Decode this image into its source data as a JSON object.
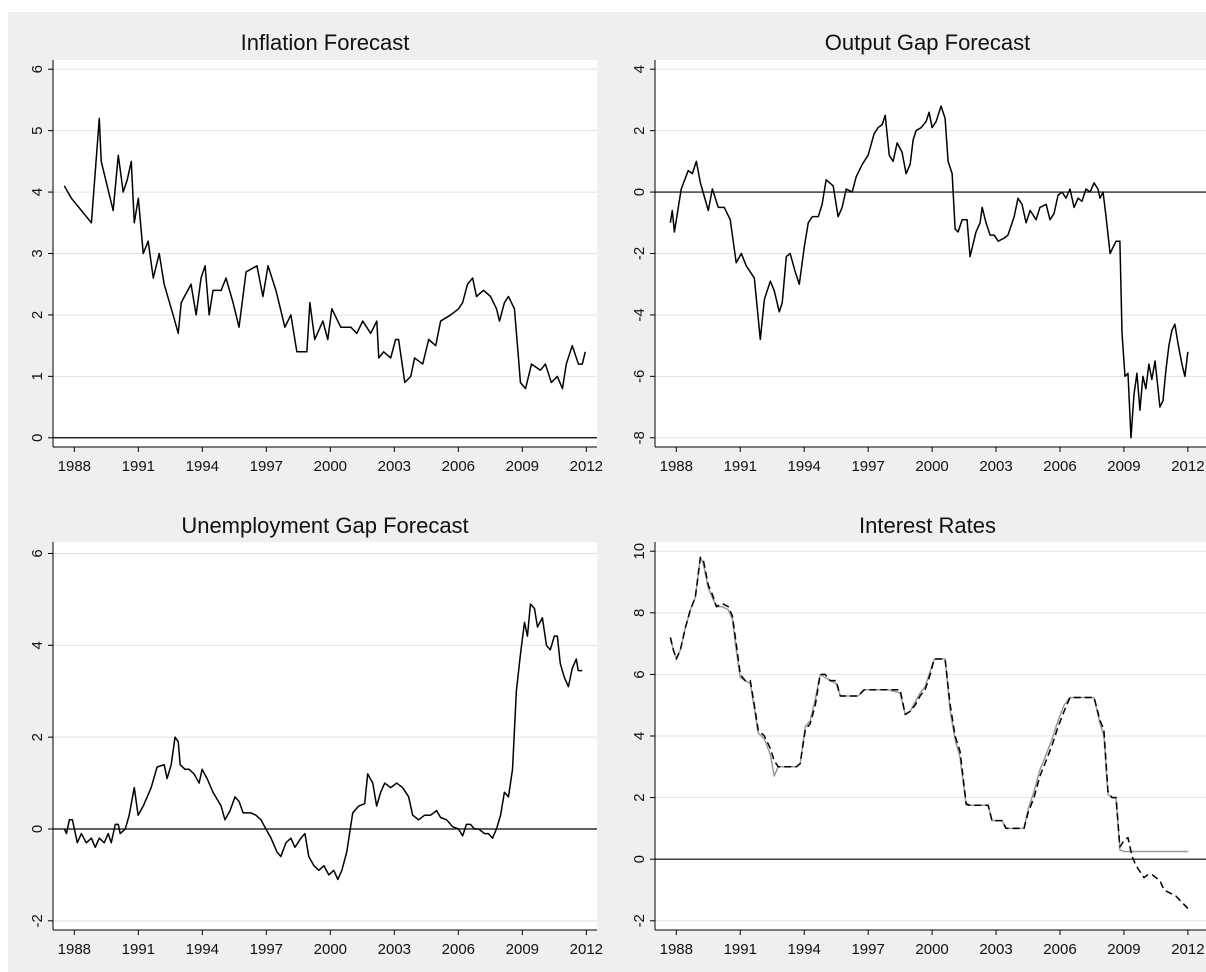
{
  "chart_data": [
    {
      "type": "line",
      "title": "Inflation Forecast",
      "x": [
        1987.53,
        1987.86,
        1988.33,
        1988.8,
        1989.17,
        1989.26,
        1989.82,
        1990.06,
        1990.29,
        1990.48,
        1990.67,
        1990.81,
        1991.0,
        1991.23,
        1991.46,
        1991.7,
        1991.98,
        1992.21,
        1992.63,
        1992.87,
        1993.01,
        1993.47,
        1993.71,
        1993.94,
        1994.13,
        1994.32,
        1994.5,
        1994.88,
        1995.11,
        1995.44,
        1995.72,
        1996.05,
        1996.56,
        1996.84,
        1997.08,
        1997.45,
        1997.87,
        1998.15,
        1998.43,
        1998.9,
        1999.04,
        1999.27,
        1999.65,
        1999.88,
        2000.07,
        2000.49,
        2000.96,
        2001.24,
        2001.52,
        2001.89,
        2002.18,
        2002.27,
        2002.5,
        2002.83,
        2003.06,
        2003.2,
        2003.49,
        2003.77,
        2003.95,
        2004.33,
        2004.61,
        2004.94,
        2005.17,
        2005.64,
        2006.01,
        2006.2,
        2006.43,
        2006.67,
        2006.85,
        2007.18,
        2007.51,
        2007.79,
        2007.93,
        2008.16,
        2008.35,
        2008.63,
        2008.82,
        2008.91,
        2009.15,
        2009.43,
        2009.85,
        2010.08,
        2010.36,
        2010.64,
        2010.88,
        2011.06,
        2011.34,
        2011.63,
        2011.81,
        2011.95
      ],
      "series": [
        {
          "color": "#000000",
          "style": "solid",
          "values": [
            4.1,
            3.9,
            3.7,
            3.5,
            5.2,
            4.5,
            3.7,
            4.6,
            4.0,
            4.2,
            4.5,
            3.5,
            3.9,
            3.0,
            3.2,
            2.6,
            3.0,
            2.5,
            2.0,
            1.7,
            2.2,
            2.5,
            2.0,
            2.6,
            2.8,
            2.0,
            2.4,
            2.4,
            2.6,
            2.2,
            1.8,
            2.7,
            2.8,
            2.3,
            2.8,
            2.4,
            1.8,
            2.0,
            1.4,
            1.4,
            2.2,
            1.6,
            1.9,
            1.6,
            2.1,
            1.8,
            1.8,
            1.7,
            1.9,
            1.7,
            1.9,
            1.3,
            1.4,
            1.3,
            1.6,
            1.6,
            0.9,
            1.0,
            1.3,
            1.2,
            1.6,
            1.5,
            1.9,
            2.0,
            2.1,
            2.2,
            2.5,
            2.6,
            2.3,
            2.4,
            2.3,
            2.1,
            1.9,
            2.2,
            2.3,
            2.1,
            1.3,
            0.9,
            0.8,
            1.2,
            1.1,
            1.2,
            0.9,
            1.0,
            0.8,
            1.2,
            1.5,
            1.2,
            1.2,
            1.4
          ]
        }
      ],
      "xlim": [
        1987,
        2012.5
      ],
      "xticks": [
        1988,
        1991,
        1994,
        1997,
        2000,
        2003,
        2006,
        2009,
        2012
      ],
      "ylim": [
        -0.15,
        6.15
      ],
      "yticks": [
        0,
        1,
        2,
        3,
        4,
        5,
        6
      ],
      "grid": true,
      "reference_line": 0
    },
    {
      "type": "line",
      "title": "Output Gap Forecast",
      "x": [
        1987.72,
        1987.81,
        1987.91,
        1988.23,
        1988.56,
        1988.75,
        1988.94,
        1989.13,
        1989.5,
        1989.69,
        1989.97,
        1990.25,
        1990.53,
        1990.81,
        1991.05,
        1991.28,
        1991.66,
        1991.94,
        1992.13,
        1992.41,
        1992.59,
        1992.83,
        1992.97,
        1993.16,
        1993.34,
        1993.58,
        1993.77,
        1994.0,
        1994.19,
        1994.38,
        1994.66,
        1994.84,
        1995.03,
        1995.36,
        1995.59,
        1995.78,
        1995.97,
        1996.25,
        1996.44,
        1996.72,
        1997.0,
        1997.28,
        1997.47,
        1997.66,
        1997.8,
        1997.99,
        1998.17,
        1998.36,
        1998.59,
        1998.78,
        1998.97,
        1999.11,
        1999.25,
        1999.49,
        1999.72,
        1999.86,
        2000.0,
        2000.19,
        2000.42,
        2000.61,
        2000.75,
        2000.94,
        2001.08,
        2001.22,
        2001.41,
        2001.64,
        2001.78,
        2002.06,
        2002.25,
        2002.35,
        2002.53,
        2002.72,
        2002.91,
        2003.1,
        2003.38,
        2003.56,
        2003.85,
        2004.03,
        2004.22,
        2004.41,
        2004.6,
        2004.88,
        2005.06,
        2005.35,
        2005.53,
        2005.72,
        2005.91,
        2006.1,
        2006.28,
        2006.47,
        2006.66,
        2006.85,
        2007.03,
        2007.22,
        2007.41,
        2007.6,
        2007.78,
        2007.88,
        2008.02,
        2008.16,
        2008.35,
        2008.63,
        2008.81,
        2008.91,
        2009.05,
        2009.19,
        2009.33,
        2009.47,
        2009.61,
        2009.75,
        2009.89,
        2010.03,
        2010.17,
        2010.31,
        2010.46,
        2010.69,
        2010.83,
        2010.97,
        2011.11,
        2011.25,
        2011.39,
        2011.53,
        2011.72,
        2011.86,
        2012.0
      ],
      "series": [
        {
          "color": "#000000",
          "style": "solid",
          "values": [
            -1.0,
            -0.6,
            -1.3,
            0.1,
            0.7,
            0.6,
            1.0,
            0.3,
            -0.6,
            0.1,
            -0.5,
            -0.5,
            -0.9,
            -2.3,
            -2.0,
            -2.4,
            -2.8,
            -4.8,
            -3.5,
            -2.9,
            -3.2,
            -3.9,
            -3.6,
            -2.1,
            -2.0,
            -2.6,
            -3.0,
            -1.8,
            -1.0,
            -0.8,
            -0.8,
            -0.4,
            0.4,
            0.2,
            -0.8,
            -0.5,
            0.1,
            0.0,
            0.5,
            0.9,
            1.2,
            1.9,
            2.1,
            2.2,
            2.5,
            1.2,
            1.0,
            1.6,
            1.3,
            0.6,
            0.9,
            1.7,
            2.0,
            2.1,
            2.3,
            2.6,
            2.1,
            2.3,
            2.8,
            2.4,
            1.0,
            0.6,
            -1.2,
            -1.3,
            -0.9,
            -0.9,
            -2.1,
            -1.3,
            -1.0,
            -0.5,
            -1.0,
            -1.4,
            -1.4,
            -1.6,
            -1.5,
            -1.4,
            -0.8,
            -0.2,
            -0.4,
            -1.0,
            -0.6,
            -0.9,
            -0.5,
            -0.4,
            -0.9,
            -0.7,
            -0.1,
            0.0,
            -0.2,
            0.1,
            -0.5,
            -0.2,
            -0.3,
            0.1,
            0.0,
            0.3,
            0.1,
            -0.2,
            0.0,
            -0.8,
            -2.0,
            -1.6,
            -1.6,
            -4.6,
            -6.0,
            -5.9,
            -8.0,
            -6.6,
            -5.9,
            -7.1,
            -6.0,
            -6.4,
            -5.6,
            -6.1,
            -5.5,
            -7.0,
            -6.8,
            -5.8,
            -5.0,
            -4.5,
            -4.3,
            -4.9,
            -5.6,
            -6.0,
            -5.2
          ]
        }
      ],
      "xlim": [
        1987,
        2012.85
      ],
      "xticks": [
        1988,
        1991,
        1994,
        1997,
        2000,
        2003,
        2006,
        2009,
        2012
      ],
      "ylim": [
        -8.3,
        4.3
      ],
      "yticks": [
        -8,
        -6,
        -4,
        -2,
        0,
        2,
        4
      ],
      "grid": true,
      "reference_line": 0
    },
    {
      "type": "line",
      "title": "Unemployment Gap Forecast",
      "x": [
        1987.53,
        1987.63,
        1987.77,
        1987.91,
        1988.14,
        1988.33,
        1988.56,
        1988.8,
        1988.98,
        1989.17,
        1989.4,
        1989.59,
        1989.73,
        1989.92,
        1990.06,
        1990.15,
        1990.39,
        1990.57,
        1990.81,
        1990.99,
        1991.23,
        1991.6,
        1991.88,
        1992.21,
        1992.35,
        1992.54,
        1992.72,
        1992.87,
        1992.96,
        1993.19,
        1993.38,
        1993.61,
        1993.85,
        1993.99,
        1994.22,
        1994.5,
        1994.88,
        1995.06,
        1995.3,
        1995.53,
        1995.72,
        1995.91,
        1996.28,
        1996.51,
        1996.75,
        1996.98,
        1997.22,
        1997.5,
        1997.68,
        1997.92,
        1998.15,
        1998.34,
        1998.62,
        1998.81,
        1998.99,
        1999.23,
        1999.46,
        1999.7,
        1999.93,
        2000.16,
        2000.35,
        2000.54,
        2000.77,
        2001.05,
        2001.33,
        2001.61,
        2001.75,
        2001.99,
        2002.17,
        2002.36,
        2002.55,
        2002.83,
        2003.11,
        2003.39,
        2003.67,
        2003.86,
        2004.14,
        2004.42,
        2004.7,
        2004.98,
        2005.17,
        2005.45,
        2005.73,
        2006.01,
        2006.2,
        2006.38,
        2006.57,
        2006.76,
        2006.95,
        2007.23,
        2007.41,
        2007.6,
        2007.79,
        2007.98,
        2008.16,
        2008.35,
        2008.54,
        2008.72,
        2008.91,
        2009.1,
        2009.24,
        2009.38,
        2009.57,
        2009.71,
        2009.94,
        2010.13,
        2010.31,
        2010.5,
        2010.64,
        2010.78,
        2010.97,
        2011.16,
        2011.34,
        2011.53,
        2011.62,
        2011.81
      ],
      "series": [
        {
          "color": "#000000",
          "style": "solid",
          "values": [
            0.0,
            -0.1,
            0.2,
            0.2,
            -0.3,
            -0.1,
            -0.3,
            -0.2,
            -0.4,
            -0.2,
            -0.3,
            -0.1,
            -0.3,
            0.1,
            0.1,
            -0.1,
            0.0,
            0.3,
            0.9,
            0.3,
            0.5,
            0.9,
            1.35,
            1.4,
            1.1,
            1.4,
            2.0,
            1.9,
            1.4,
            1.3,
            1.3,
            1.2,
            1.0,
            1.3,
            1.1,
            0.8,
            0.5,
            0.2,
            0.4,
            0.7,
            0.6,
            0.35,
            0.35,
            0.3,
            0.2,
            0.0,
            -0.2,
            -0.5,
            -0.6,
            -0.3,
            -0.2,
            -0.4,
            -0.2,
            -0.1,
            -0.6,
            -0.8,
            -0.9,
            -0.8,
            -1.0,
            -0.9,
            -1.1,
            -0.9,
            -0.5,
            0.35,
            0.5,
            0.55,
            1.2,
            1.0,
            0.5,
            0.8,
            1.0,
            0.9,
            1.0,
            0.9,
            0.7,
            0.3,
            0.2,
            0.3,
            0.3,
            0.4,
            0.25,
            0.2,
            0.05,
            0.0,
            -0.15,
            0.1,
            0.1,
            0.0,
            0.0,
            -0.1,
            -0.1,
            -0.2,
            0.0,
            0.3,
            0.8,
            0.7,
            1.3,
            3.0,
            3.8,
            4.5,
            4.2,
            4.9,
            4.8,
            4.4,
            4.6,
            4.0,
            3.9,
            4.2,
            4.2,
            3.6,
            3.3,
            3.1,
            3.5,
            3.7,
            3.45,
            3.45
          ]
        }
      ],
      "xlim": [
        1987,
        2012.5
      ],
      "xticks": [
        1988,
        1991,
        1994,
        1997,
        2000,
        2003,
        2006,
        2009,
        2012
      ],
      "ylim": [
        -2.2,
        6.25
      ],
      "yticks": [
        -2,
        0,
        2,
        4,
        6
      ],
      "grid": true,
      "reference_line": 0
    },
    {
      "type": "line",
      "title": "Interest Rates",
      "x": [
        1987.72,
        1987.86,
        1988.0,
        1988.19,
        1988.42,
        1988.66,
        1988.89,
        1989.13,
        1989.27,
        1989.5,
        1989.69,
        1989.88,
        1990.16,
        1990.44,
        1990.63,
        1990.81,
        1991.0,
        1991.23,
        1991.47,
        1991.66,
        1991.84,
        1992.13,
        1992.41,
        1992.59,
        1992.78,
        1993.06,
        1993.34,
        1993.63,
        1993.81,
        1994.05,
        1994.28,
        1994.52,
        1994.75,
        1994.98,
        1995.22,
        1995.5,
        1995.69,
        1995.97,
        1996.25,
        1996.53,
        1996.81,
        1997.38,
        1997.94,
        1998.5,
        1998.74,
        1998.97,
        1999.2,
        1999.44,
        1999.67,
        1999.91,
        2000.1,
        2000.61,
        2000.85,
        2001.08,
        2001.31,
        2001.6,
        2001.78,
        2002.63,
        2002.81,
        2003.28,
        2003.47,
        2004.31,
        2004.5,
        2004.78,
        2005.06,
        2005.35,
        2005.63,
        2005.91,
        2006.19,
        2006.47,
        2007.6,
        2007.88,
        2008.06,
        2008.25,
        2008.44,
        2008.63,
        2008.81,
        2009.0,
        2009.19,
        2009.38,
        2009.56,
        2009.75,
        2009.94,
        2010.13,
        2010.31,
        2010.5,
        2010.69,
        2010.88,
        2011.16,
        2011.44,
        2011.72,
        2012.0
      ],
      "series": [
        {
          "color": "#999999",
          "style": "solid",
          "values": [
            7.2,
            6.8,
            6.5,
            6.8,
            7.5,
            8.1,
            8.5,
            9.8,
            9.6,
            8.8,
            8.5,
            8.2,
            8.2,
            8.1,
            7.8,
            6.8,
            5.9,
            5.8,
            5.7,
            4.9,
            4.1,
            3.9,
            3.4,
            2.7,
            3.0,
            3.0,
            3.0,
            3.0,
            3.1,
            4.3,
            4.5,
            5.2,
            6.0,
            5.9,
            5.8,
            5.7,
            5.3,
            5.3,
            5.3,
            5.3,
            5.5,
            5.5,
            5.5,
            5.4,
            4.7,
            4.8,
            5.1,
            5.4,
            5.6,
            6.1,
            6.5,
            6.5,
            4.8,
            3.9,
            3.3,
            1.75,
            1.75,
            1.75,
            1.25,
            1.25,
            1.0,
            1.0,
            1.6,
            2.2,
            2.9,
            3.4,
            3.9,
            4.5,
            5.0,
            5.25,
            5.25,
            4.4,
            4.0,
            2.1,
            2.0,
            2.0,
            0.3,
            0.25,
            0.25,
            0.25,
            0.25,
            0.25,
            0.25,
            0.25,
            0.25,
            0.25,
            0.25,
            0.25,
            0.25,
            0.25,
            0.25,
            0.25
          ]
        },
        {
          "color": "#000000",
          "style": "dashed",
          "values": [
            7.2,
            6.8,
            6.5,
            6.8,
            7.5,
            8.1,
            8.5,
            9.8,
            9.7,
            8.9,
            8.6,
            8.2,
            8.3,
            8.2,
            7.9,
            7.0,
            6.0,
            5.8,
            5.8,
            5.0,
            4.2,
            4.0,
            3.6,
            3.2,
            3.0,
            3.0,
            3.0,
            3.0,
            3.1,
            4.2,
            4.4,
            5.0,
            6.0,
            6.0,
            5.8,
            5.8,
            5.3,
            5.3,
            5.3,
            5.3,
            5.5,
            5.5,
            5.5,
            5.5,
            4.7,
            4.8,
            5.0,
            5.3,
            5.5,
            6.0,
            6.5,
            6.5,
            5.0,
            4.0,
            3.5,
            1.8,
            1.75,
            1.75,
            1.25,
            1.25,
            1.0,
            1.0,
            1.5,
            2.0,
            2.7,
            3.2,
            3.7,
            4.3,
            4.8,
            5.25,
            5.25,
            4.5,
            4.2,
            2.2,
            2.0,
            2.0,
            0.4,
            0.6,
            0.7,
            0.1,
            -0.2,
            -0.4,
            -0.6,
            -0.5,
            -0.5,
            -0.6,
            -0.7,
            -1.0,
            -1.1,
            -1.2,
            -1.4,
            -1.6
          ]
        }
      ],
      "xlim": [
        1987,
        2012.85
      ],
      "xticks": [
        1988,
        1991,
        1994,
        1997,
        2000,
        2003,
        2006,
        2009,
        2012
      ],
      "ylim": [
        -2.3,
        10.3
      ],
      "yticks": [
        -2,
        0,
        2,
        4,
        6,
        8,
        10
      ],
      "grid": true,
      "reference_line": 0
    }
  ]
}
